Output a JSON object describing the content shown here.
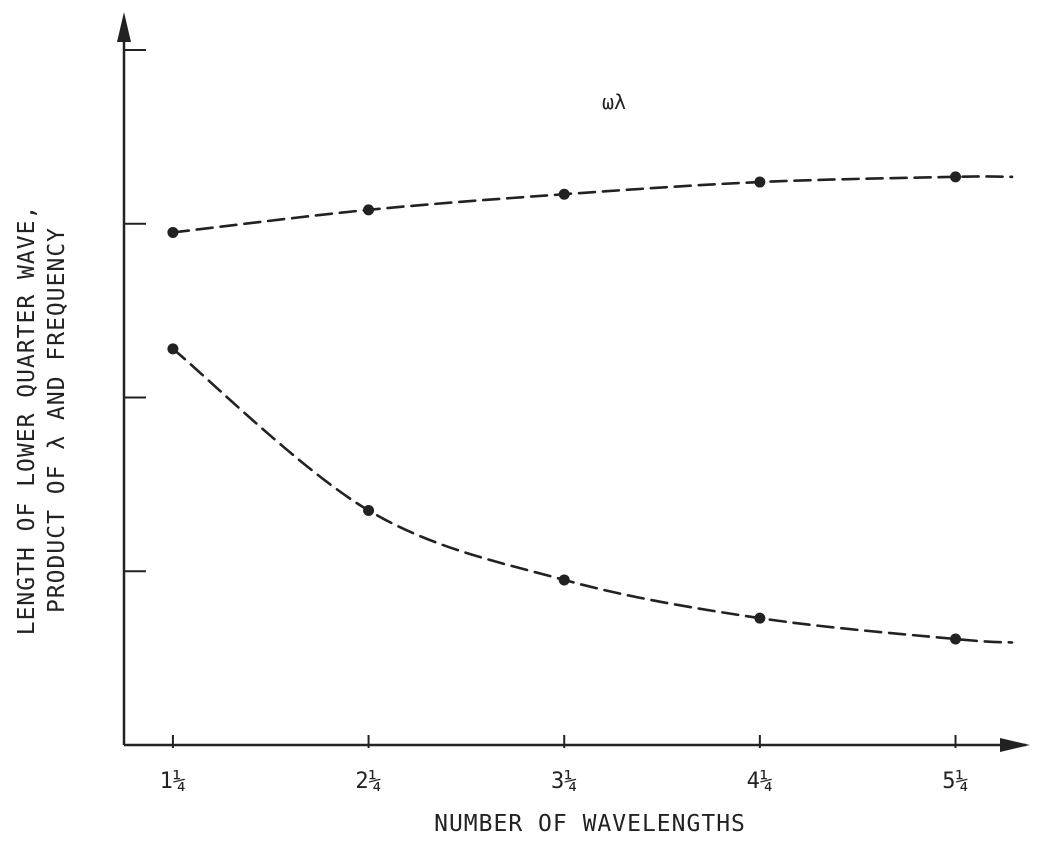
{
  "chart_data": {
    "type": "line",
    "title": "",
    "xlabel": "NUMBER OF WAVELENGTHS",
    "ylabel_lines": [
      "LENGTH OF LOWER QUARTER WAVE,",
      "PRODUCT OF λ AND FREQUENCY"
    ],
    "categories": [
      "1¼",
      "2¼",
      "3¼",
      "4¼",
      "5¼"
    ],
    "x": [
      1.25,
      2.25,
      3.25,
      4.25,
      5.25
    ],
    "xlim": [
      1.0,
      5.6
    ],
    "ylim": [
      0,
      4
    ],
    "grid": false,
    "legend": "none",
    "series": [
      {
        "name": "ωλ",
        "values": [
          2.95,
          3.08,
          3.17,
          3.24,
          3.27
        ],
        "line_end": 3.27
      },
      {
        "name": "",
        "values": [
          2.28,
          1.35,
          0.95,
          0.73,
          0.61
        ],
        "line_end": 0.59
      }
    ],
    "colors": {
      "ink": "#222222",
      "background": "#ffffff"
    }
  }
}
